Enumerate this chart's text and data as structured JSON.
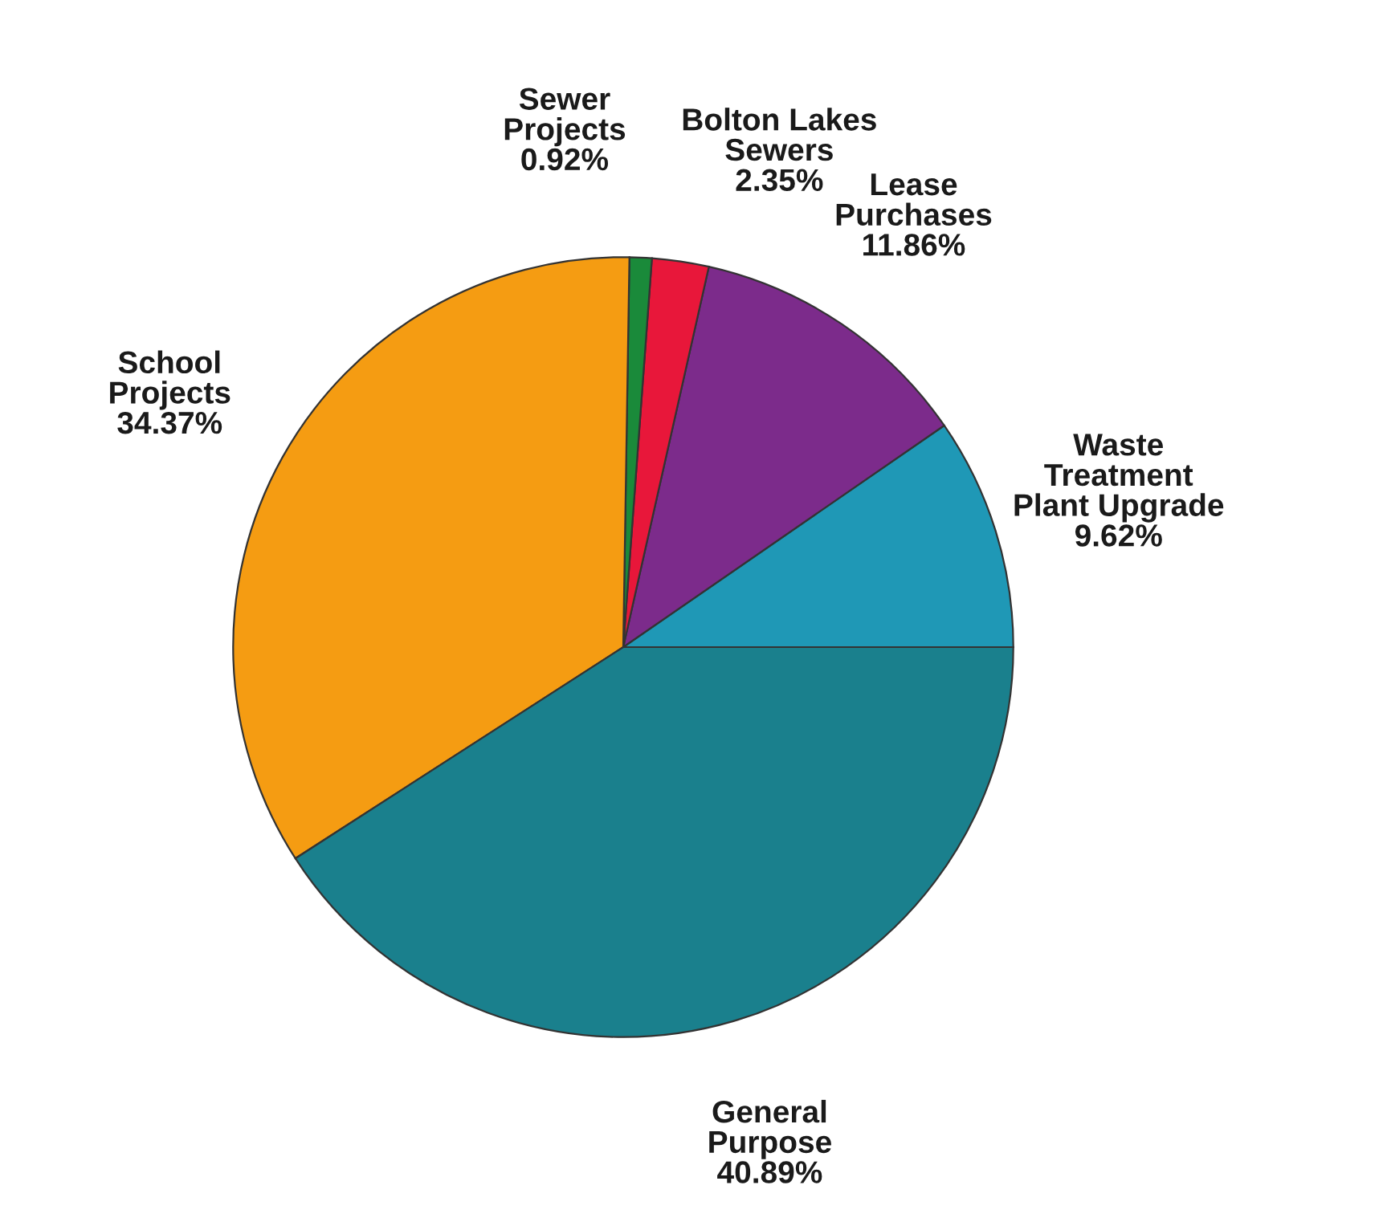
{
  "chart_data": {
    "type": "pie",
    "categories": [
      "Waste\nTreatment\nPlant Upgrade",
      "Lease\nPurchases",
      "Bolton Lakes\nSewers",
      "Sewer\nProjects",
      "School\nProjects",
      "General\nPurpose"
    ],
    "values": [
      9.62,
      11.86,
      2.35,
      0.92,
      34.37,
      40.89
    ],
    "value_labels": [
      "9.62%",
      "11.86%",
      "2.35%",
      "0.92%",
      "34.37%",
      "40.89%"
    ],
    "colors": [
      "#1f98b6",
      "#7c2b8b",
      "#e8173a",
      "#1a8a3a",
      "#f59c12",
      "#1a808d"
    ],
    "legend": false
  }
}
